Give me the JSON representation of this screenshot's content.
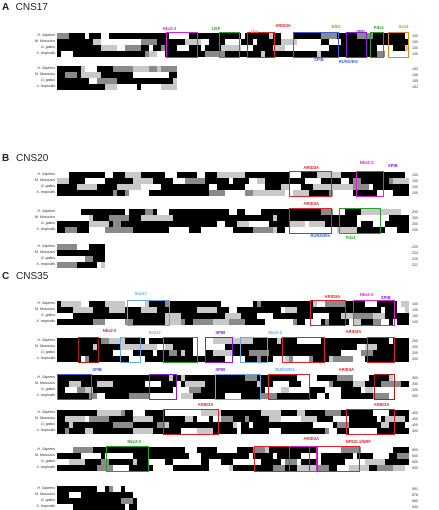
{
  "colors": {
    "identical": "#000000",
    "similar": "#8a8a8a",
    "light": "#c8c8c8",
    "none": "#ffffff",
    "magenta": "#d81fd8",
    "red": "#e0202a",
    "green": "#25a225",
    "blue": "#3a5fd8",
    "olive": "#9a9a10",
    "orange": "#e08a1a",
    "purple": "#8a1ad8",
    "lightblue": "#6aa6e8",
    "darkred": "#b01a1a"
  },
  "species": [
    "H. Sapiens",
    "M. Musculus",
    "G. gallus",
    "X. tropicalis"
  ],
  "panels": [
    {
      "letter": "A",
      "name": "CNS17",
      "blocks": [
        {
          "numbers": [
            "100",
            "100",
            "100",
            "100"
          ],
          "labels": [
            {
              "text": "Nkx2-2",
              "color": "magenta"
            },
            {
              "text": "USF",
              "color": "green"
            },
            {
              "text": "Lhx",
              "color": "orange"
            },
            {
              "text": "ARID3A",
              "color": "red"
            },
            {
              "text": "Elk1",
              "color": "olive"
            },
            {
              "text": "SPI1",
              "color": "purple"
            },
            {
              "text": "Pdx1",
              "color": "green"
            },
            {
              "text": "Sox4",
              "color": "orange"
            },
            {
              "text": "SPIB",
              "color": "blue"
            },
            {
              "text": "RUNX/Ets",
              "color": "blue"
            }
          ]
        },
        {
          "numbers": [
            "153",
            "146",
            "155",
            "151"
          ],
          "labels": []
        }
      ]
    },
    {
      "letter": "B",
      "name": "CNS20",
      "blocks": [
        {
          "numbers": [
            "100",
            "100",
            "100",
            "100"
          ],
          "labels": [
            {
              "text": "ARID3A",
              "color": "red"
            },
            {
              "text": "Nkx2-2",
              "color": "magenta"
            },
            {
              "text": "SPIB",
              "color": "purple"
            }
          ]
        },
        {
          "numbers": [
            "200",
            "200",
            "200",
            "200"
          ],
          "labels": [
            {
              "text": "ARID3A",
              "color": "red"
            },
            {
              "text": "RUNX/Ets",
              "color": "blue"
            },
            {
              "text": "Pdx1",
              "color": "green"
            }
          ]
        },
        {
          "numbers": [
            "229",
            "224",
            "229",
            "221"
          ],
          "labels": []
        }
      ]
    },
    {
      "letter": "C",
      "name": "CNS35",
      "blocks": [
        {
          "numbers": [
            "100",
            "100",
            "100",
            "100"
          ],
          "labels": [
            {
              "text": "Sox17",
              "color": "lightblue"
            },
            {
              "text": "ARID3A",
              "color": "red"
            },
            {
              "text": "Nkx2-2",
              "color": "magenta"
            },
            {
              "text": "SPIB",
              "color": "purple"
            }
          ]
        },
        {
          "numbers": [
            "200",
            "200",
            "200",
            "200"
          ],
          "labels": [
            {
              "text": "Nkx2-2",
              "color": "red"
            },
            {
              "text": "Sox17",
              "color": "lightblue"
            },
            {
              "text": "SPIB",
              "color": "purple"
            },
            {
              "text": "Nkx2-2",
              "color": "lightblue"
            },
            {
              "text": "ARID3A",
              "color": "red"
            }
          ]
        },
        {
          "numbers": [
            "300",
            "300",
            "300",
            "300"
          ],
          "labels": [
            {
              "text": "SPIB",
              "color": "blue"
            },
            {
              "text": "SPIB",
              "color": "purple"
            },
            {
              "text": "RUNX/Ets",
              "color": "lightblue"
            },
            {
              "text": "ARID3A",
              "color": "red"
            }
          ]
        },
        {
          "numbers": [
            "400",
            "400",
            "400",
            "400"
          ],
          "labels": [
            {
              "text": "ARID3A",
              "color": "red"
            },
            {
              "text": "ARID3A",
              "color": "red"
            }
          ]
        },
        {
          "numbers": [
            "500",
            "500",
            "500",
            "500"
          ],
          "labels": [
            {
              "text": "Nkx2-2",
              "color": "green"
            },
            {
              "text": "ARID3A",
              "color": "red"
            },
            {
              "text": "NFE2L1/NRF",
              "color": "red"
            }
          ]
        },
        {
          "numbers": [
            "591",
            "576",
            "560",
            "540"
          ],
          "labels": []
        }
      ]
    }
  ]
}
